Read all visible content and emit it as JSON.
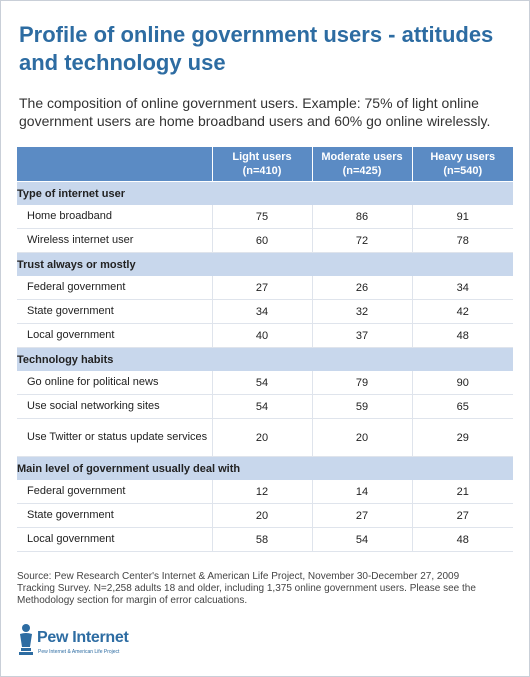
{
  "title": "Profile of online government users - attitudes and technology use",
  "subtitle": "The composition of online government users. Example: 75% of light online government users are home broadband users and 60% go online wirelessly.",
  "table": {
    "columns": [
      {
        "name": "Light users",
        "n": "(n=410)"
      },
      {
        "name": "Moderate users",
        "n": "(n=425)"
      },
      {
        "name": "Heavy users",
        "n": "(n=540)"
      }
    ],
    "sections": [
      {
        "heading": "Type of internet user",
        "rows": [
          {
            "label": "Home broadband",
            "values": [
              "75",
              "86",
              "91"
            ]
          },
          {
            "label": "Wireless internet user",
            "values": [
              "60",
              "72",
              "78"
            ]
          }
        ]
      },
      {
        "heading": "Trust always or mostly",
        "rows": [
          {
            "label": "Federal government",
            "values": [
              "27",
              "26",
              "34"
            ]
          },
          {
            "label": "State government",
            "values": [
              "34",
              "32",
              "42"
            ]
          },
          {
            "label": "Local government",
            "values": [
              "40",
              "37",
              "48"
            ]
          }
        ]
      },
      {
        "heading": "Technology habits",
        "rows": [
          {
            "label": "Go online for political news",
            "values": [
              "54",
              "79",
              "90"
            ]
          },
          {
            "label": "Use social networking sites",
            "values": [
              "54",
              "59",
              "65"
            ]
          },
          {
            "label": "Use Twitter or status update services",
            "values": [
              "20",
              "20",
              "29"
            ]
          }
        ]
      },
      {
        "heading": "Main level of government usually deal with",
        "rows": [
          {
            "label": "Federal government",
            "values": [
              "12",
              "14",
              "21"
            ]
          },
          {
            "label": "State government",
            "values": [
              "20",
              "27",
              "27"
            ]
          },
          {
            "label": "Local government",
            "values": [
              "58",
              "54",
              "48"
            ]
          }
        ]
      }
    ]
  },
  "source": "Source: Pew Research Center's Internet & American Life Project, November 30-December 27, 2009 Tracking Survey. N=2,258 adults 18 and older, including 1,375 online government users. Please see the Methodology section for margin of error calcuations.",
  "logo": {
    "name": "Pew Internet",
    "tagline": "Pew Internet & American Life Project",
    "icon": "pew-logo-icon"
  },
  "colors": {
    "title": "#2d6ca2",
    "header_bg": "#5b8bc4",
    "section_bg": "#c8d7ec"
  }
}
